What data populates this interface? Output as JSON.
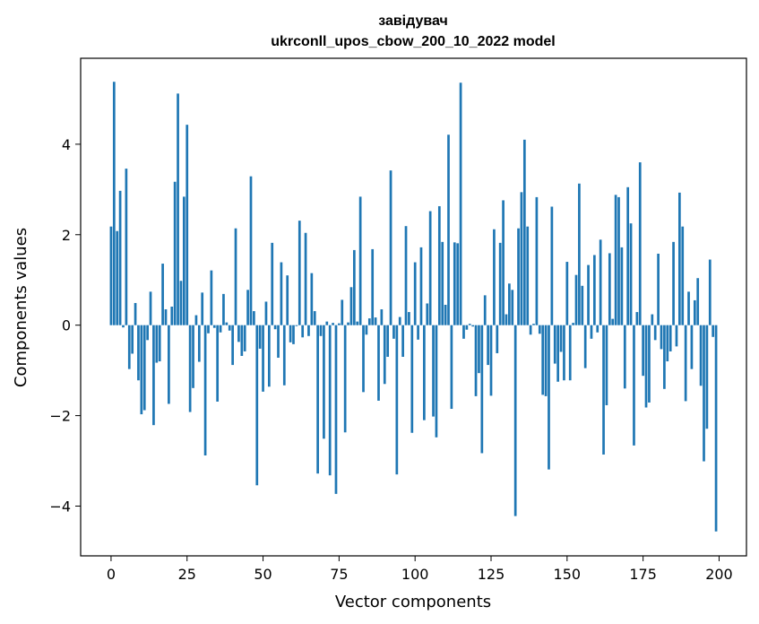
{
  "chart_data": {
    "type": "bar",
    "title": "завідувач",
    "subtitle": "ukrconll_upos_cbow_200_10_2022 model",
    "xlabel": "Vector components",
    "ylabel": "Components values",
    "xlim": [
      -10,
      209
    ],
    "ylim": [
      -5.1,
      5.9
    ],
    "xticks": [
      0,
      25,
      50,
      75,
      100,
      125,
      150,
      175,
      200
    ],
    "yticks": [
      -4,
      -2,
      0,
      2,
      4
    ],
    "grid": false,
    "bar_color": "#1f77b4",
    "values": [
      2.18,
      5.38,
      2.08,
      2.97,
      -0.05,
      3.46,
      -0.97,
      -0.63,
      0.49,
      -1.22,
      -1.97,
      -1.88,
      -0.33,
      0.74,
      -2.21,
      -0.83,
      -0.8,
      1.36,
      0.35,
      -1.74,
      0.41,
      3.17,
      5.12,
      0.98,
      2.84,
      4.43,
      -1.92,
      -1.39,
      0.22,
      -0.81,
      0.72,
      -2.88,
      -0.18,
      1.21,
      -0.06,
      -1.69,
      -0.16,
      0.69,
      0.06,
      -0.12,
      -0.88,
      2.14,
      -0.37,
      -0.68,
      -0.58,
      0.78,
      3.29,
      0.31,
      -3.54,
      -0.52,
      -1.47,
      0.52,
      -1.36,
      1.82,
      -0.09,
      -0.72,
      1.39,
      -1.33,
      1.1,
      -0.38,
      -0.42,
      -0.02,
      2.31,
      -0.27,
      2.04,
      -0.24,
      1.15,
      0.31,
      -3.28,
      -0.24,
      -2.51,
      0.08,
      -3.32,
      0.05,
      -3.73,
      0.04,
      0.56,
      -2.37,
      0.06,
      0.84,
      1.66,
      0.08,
      2.84,
      -1.48,
      -0.21,
      0.15,
      1.68,
      0.17,
      -1.67,
      0.35,
      -1.3,
      -0.7,
      3.42,
      -0.3,
      -3.3,
      0.18,
      -0.7,
      2.19,
      0.29,
      -2.38,
      1.39,
      -0.32,
      1.72,
      -2.1,
      0.48,
      2.52,
      -2.02,
      -2.48,
      2.63,
      1.84,
      0.45,
      4.21,
      -1.85,
      1.83,
      1.81,
      5.36,
      -0.3,
      -0.1,
      0.03,
      -0.03,
      -1.57,
      -1.06,
      -2.83,
      0.66,
      -0.88,
      -1.56,
      2.12,
      -0.62,
      1.82,
      2.76,
      0.24,
      0.92,
      0.78,
      -4.22,
      2.14,
      2.94,
      4.1,
      2.18,
      -0.21,
      0.03,
      2.83,
      -0.19,
      -1.54,
      -1.57,
      -3.19,
      2.62,
      -0.85,
      -1.25,
      -0.59,
      -1.22,
      1.4,
      -1.22,
      0.05,
      1.11,
      3.13,
      0.87,
      -0.95,
      1.33,
      -0.3,
      1.55,
      -0.16,
      1.89,
      -2.86,
      -1.77,
      1.59,
      0.14,
      2.88,
      2.83,
      1.72,
      -1.4,
      3.05,
      2.25,
      -2.66,
      0.29,
      3.6,
      -1.12,
      -1.82,
      -1.71,
      0.24,
      -0.33,
      1.58,
      -0.53,
      -1.41,
      -0.8,
      -0.58,
      1.84,
      -0.47,
      2.93,
      2.18,
      -1.68,
      0.74,
      -0.97,
      0.55,
      1.04,
      -1.34,
      -3.01,
      -2.29,
      1.45,
      -0.26,
      -4.56
    ]
  }
}
